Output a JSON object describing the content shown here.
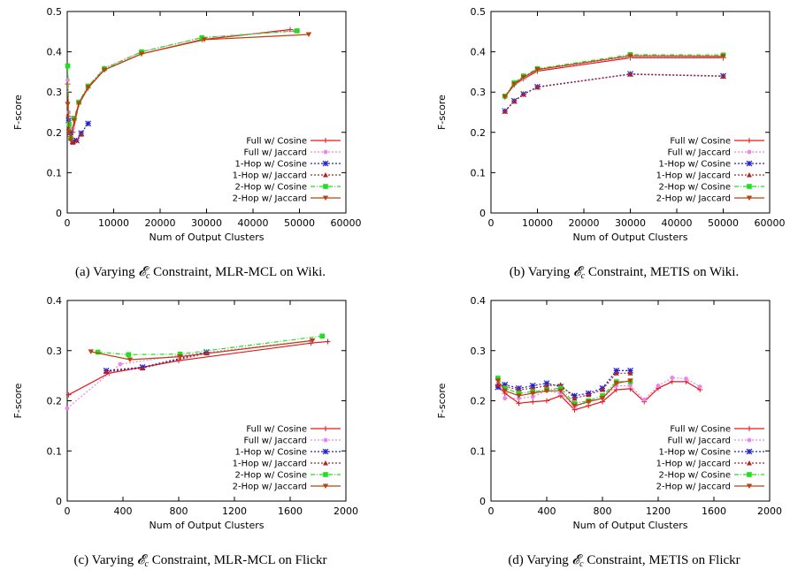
{
  "legend_entries": [
    "Full w/ Cosine",
    "Full w/ Jaccard",
    "1-Hop w/ Cosine",
    "1-Hop w/ Jaccard",
    "2-Hop w/ Cosine",
    "2-Hop w/ Jaccard"
  ],
  "series_colors": [
    "#e41a1c",
    "#ee82ee",
    "#1f1fd6",
    "#b22222",
    "#22dd22",
    "#b8430f"
  ],
  "series_markers": [
    "plus",
    "circle",
    "star",
    "triangle",
    "square",
    "triangle-down"
  ],
  "chart_data": [
    {
      "type": "line",
      "xlabel": "Num of Output Clusters",
      "ylabel": "F-score",
      "xlim": [
        0,
        60000
      ],
      "ylim": [
        0,
        0.5
      ],
      "xticks": [
        "0",
        "10000",
        "20000",
        "30000",
        "40000",
        "50000",
        "60000"
      ],
      "yticks": [
        "0",
        "0.1",
        "0.2",
        "0.3",
        "0.4",
        "0.5"
      ],
      "legend_position": "bottom-right",
      "grid": false,
      "caption": {
        "prefix": "(a) Varying",
        "symbol": "𝓔",
        "sub": "c",
        "suffix": "Constraint, MLR-MCL on Wiki."
      },
      "series": [
        {
          "name": "Full w/ Cosine",
          "x": [
            100,
            300,
            600,
            1200,
            2500,
            4500,
            8000,
            16000,
            29000,
            48000
          ],
          "y": [
            0.32,
            0.24,
            0.19,
            0.2,
            0.27,
            0.31,
            0.355,
            0.395,
            0.43,
            0.455
          ]
        },
        {
          "name": "Full w/ Jaccard",
          "x": [
            100,
            300,
            600,
            1200,
            2500,
            4500,
            8000,
            16000,
            29000,
            49000
          ],
          "y": [
            0.33,
            0.25,
            0.2,
            0.21,
            0.275,
            0.315,
            0.36,
            0.4,
            0.435,
            0.452
          ]
        },
        {
          "name": "1-Hop w/ Cosine",
          "x": [
            300,
            700,
            1200,
            2000,
            3000,
            4500
          ],
          "y": [
            0.23,
            0.2,
            0.178,
            0.18,
            0.198,
            0.222
          ]
        },
        {
          "name": "1-Hop w/ Jaccard",
          "x": [
            300,
            700,
            1200,
            2000,
            3000
          ],
          "y": [
            0.21,
            0.185,
            0.175,
            0.18,
            0.195
          ]
        },
        {
          "name": "2-Hop w/ Cosine",
          "x": [
            100,
            400,
            800,
            1500,
            2500,
            4500,
            8000,
            16000,
            29000,
            49500
          ],
          "y": [
            0.365,
            0.22,
            0.185,
            0.235,
            0.275,
            0.315,
            0.358,
            0.4,
            0.435,
            0.452
          ]
        },
        {
          "name": "2-Hop w/ Jaccard",
          "x": [
            100,
            400,
            800,
            1500,
            2500,
            4500,
            8000,
            16000,
            29500,
            52000
          ],
          "y": [
            0.27,
            0.2,
            0.18,
            0.23,
            0.272,
            0.312,
            0.355,
            0.395,
            0.43,
            0.443
          ]
        }
      ]
    },
    {
      "type": "line",
      "xlabel": "Num of Output Clusters",
      "ylabel": "F-score",
      "xlim": [
        0,
        60000
      ],
      "ylim": [
        0,
        0.5
      ],
      "xticks": [
        "0",
        "10000",
        "20000",
        "30000",
        "40000",
        "50000",
        "60000"
      ],
      "yticks": [
        "0",
        "0.1",
        "0.2",
        "0.3",
        "0.4",
        "0.5"
      ],
      "legend_position": "bottom-right",
      "grid": false,
      "caption": {
        "prefix": "(b) Varying",
        "symbol": "𝓔",
        "sub": "c",
        "suffix": "Constraint, METIS on Wiki."
      },
      "series": [
        {
          "name": "Full w/ Cosine",
          "x": [
            3000,
            5000,
            7000,
            10000,
            30000,
            50000
          ],
          "y": [
            0.288,
            0.318,
            0.333,
            0.352,
            0.385,
            0.385
          ]
        },
        {
          "name": "Full w/ Jaccard",
          "x": [
            3000,
            5000,
            7000,
            10000,
            30000,
            50000
          ],
          "y": [
            0.29,
            0.32,
            0.335,
            0.355,
            0.388,
            0.388
          ]
        },
        {
          "name": "1-Hop w/ Cosine",
          "x": [
            3000,
            5000,
            7000,
            10000,
            30000,
            50000
          ],
          "y": [
            0.253,
            0.278,
            0.295,
            0.313,
            0.345,
            0.34
          ]
        },
        {
          "name": "1-Hop w/ Jaccard",
          "x": [
            3000,
            5000,
            7000,
            10000,
            30000,
            50000
          ],
          "y": [
            0.252,
            0.277,
            0.294,
            0.312,
            0.344,
            0.339
          ]
        },
        {
          "name": "2-Hop w/ Cosine",
          "x": [
            3000,
            5000,
            7000,
            10000,
            30000,
            50000
          ],
          "y": [
            0.29,
            0.323,
            0.34,
            0.358,
            0.393,
            0.392
          ]
        },
        {
          "name": "2-Hop w/ Jaccard",
          "x": [
            3000,
            5000,
            7000,
            10000,
            30000,
            50000
          ],
          "y": [
            0.288,
            0.32,
            0.337,
            0.356,
            0.39,
            0.389
          ]
        }
      ]
    },
    {
      "type": "line",
      "xlabel": "Num of Output Clusters",
      "ylabel": "F-score",
      "xlim": [
        0,
        2000
      ],
      "ylim": [
        0,
        0.4
      ],
      "xticks": [
        "0",
        "400",
        "800",
        "1200",
        "1600",
        "2000"
      ],
      "yticks": [
        "0",
        "0.1",
        "0.2",
        "0.3",
        "0.4"
      ],
      "legend_position": "bottom-right",
      "grid": false,
      "caption": {
        "prefix": "(c) Varying",
        "symbol": "𝓔",
        "sub": "c",
        "suffix": "Constraint, MLR-MCL on Flickr"
      },
      "series": [
        {
          "name": "Full w/ Cosine",
          "x": [
            10,
            300,
            800,
            1750,
            1870
          ],
          "y": [
            0.212,
            0.255,
            0.28,
            0.315,
            0.318
          ]
        },
        {
          "name": "Full w/ Jaccard",
          "x": [
            0,
            380,
            800,
            1750
          ],
          "y": [
            0.185,
            0.273,
            0.29,
            0.32
          ]
        },
        {
          "name": "1-Hop w/ Cosine",
          "x": [
            280,
            540,
            1000
          ],
          "y": [
            0.26,
            0.267,
            0.297
          ]
        },
        {
          "name": "1-Hop w/ Jaccard",
          "x": [
            280,
            540,
            1000
          ],
          "y": [
            0.258,
            0.265,
            0.295
          ]
        },
        {
          "name": "2-Hop w/ Cosine",
          "x": [
            220,
            440,
            810,
            1830
          ],
          "y": [
            0.297,
            0.292,
            0.293,
            0.329
          ]
        },
        {
          "name": "2-Hop w/ Jaccard",
          "x": [
            170,
            450,
            810,
            1760
          ],
          "y": [
            0.298,
            0.282,
            0.288,
            0.32
          ]
        }
      ]
    },
    {
      "type": "line",
      "xlabel": "Num of Output Clusters",
      "ylabel": "F-score",
      "xlim": [
        0,
        2000
      ],
      "ylim": [
        0,
        0.4
      ],
      "xticks": [
        "0",
        "400",
        "800",
        "1200",
        "1600",
        "2000"
      ],
      "yticks": [
        "0",
        "0.1",
        "0.2",
        "0.3",
        "0.4"
      ],
      "legend_position": "bottom-right",
      "grid": false,
      "caption": {
        "prefix": "(d) Varying",
        "symbol": "𝓔",
        "sub": "c",
        "suffix": "Constraint, METIS on Flickr"
      },
      "series": [
        {
          "name": "Full w/ Cosine",
          "x": [
            50,
            100,
            200,
            300,
            400,
            500,
            600,
            700,
            800,
            900,
            1000,
            1100,
            1200,
            1300,
            1400,
            1500
          ],
          "y": [
            0.23,
            0.215,
            0.195,
            0.198,
            0.2,
            0.21,
            0.182,
            0.19,
            0.198,
            0.222,
            0.224,
            0.198,
            0.225,
            0.238,
            0.238,
            0.222
          ]
        },
        {
          "name": "Full w/ Jaccard",
          "x": [
            50,
            100,
            200,
            300,
            400,
            500,
            600,
            700,
            800,
            900,
            1000,
            1100,
            1200,
            1300,
            1400,
            1500
          ],
          "y": [
            0.235,
            0.205,
            0.205,
            0.208,
            0.22,
            0.215,
            0.188,
            0.198,
            0.205,
            0.23,
            0.23,
            0.202,
            0.23,
            0.246,
            0.244,
            0.228
          ]
        },
        {
          "name": "1-Hop w/ Cosine",
          "x": [
            50,
            100,
            200,
            300,
            400,
            500,
            600,
            700,
            800,
            900,
            1000
          ],
          "y": [
            0.227,
            0.232,
            0.225,
            0.23,
            0.235,
            0.228,
            0.21,
            0.215,
            0.225,
            0.26,
            0.26
          ]
        },
        {
          "name": "1-Hop w/ Jaccard",
          "x": [
            50,
            100,
            200,
            300,
            400,
            500,
            600,
            700,
            800,
            900,
            1000
          ],
          "y": [
            0.232,
            0.228,
            0.222,
            0.225,
            0.23,
            0.232,
            0.205,
            0.212,
            0.222,
            0.255,
            0.255
          ]
        },
        {
          "name": "2-Hop w/ Cosine",
          "x": [
            50,
            100,
            200,
            300,
            400,
            500,
            600,
            700,
            800,
            900,
            1000
          ],
          "y": [
            0.245,
            0.225,
            0.215,
            0.218,
            0.222,
            0.225,
            0.195,
            0.2,
            0.21,
            0.238,
            0.238
          ]
        },
        {
          "name": "2-Hop w/ Jaccard",
          "x": [
            50,
            100,
            200,
            300,
            400,
            500,
            600,
            700,
            800,
            900,
            1000
          ],
          "y": [
            0.24,
            0.22,
            0.21,
            0.215,
            0.22,
            0.22,
            0.19,
            0.198,
            0.205,
            0.235,
            0.24
          ]
        }
      ]
    }
  ]
}
